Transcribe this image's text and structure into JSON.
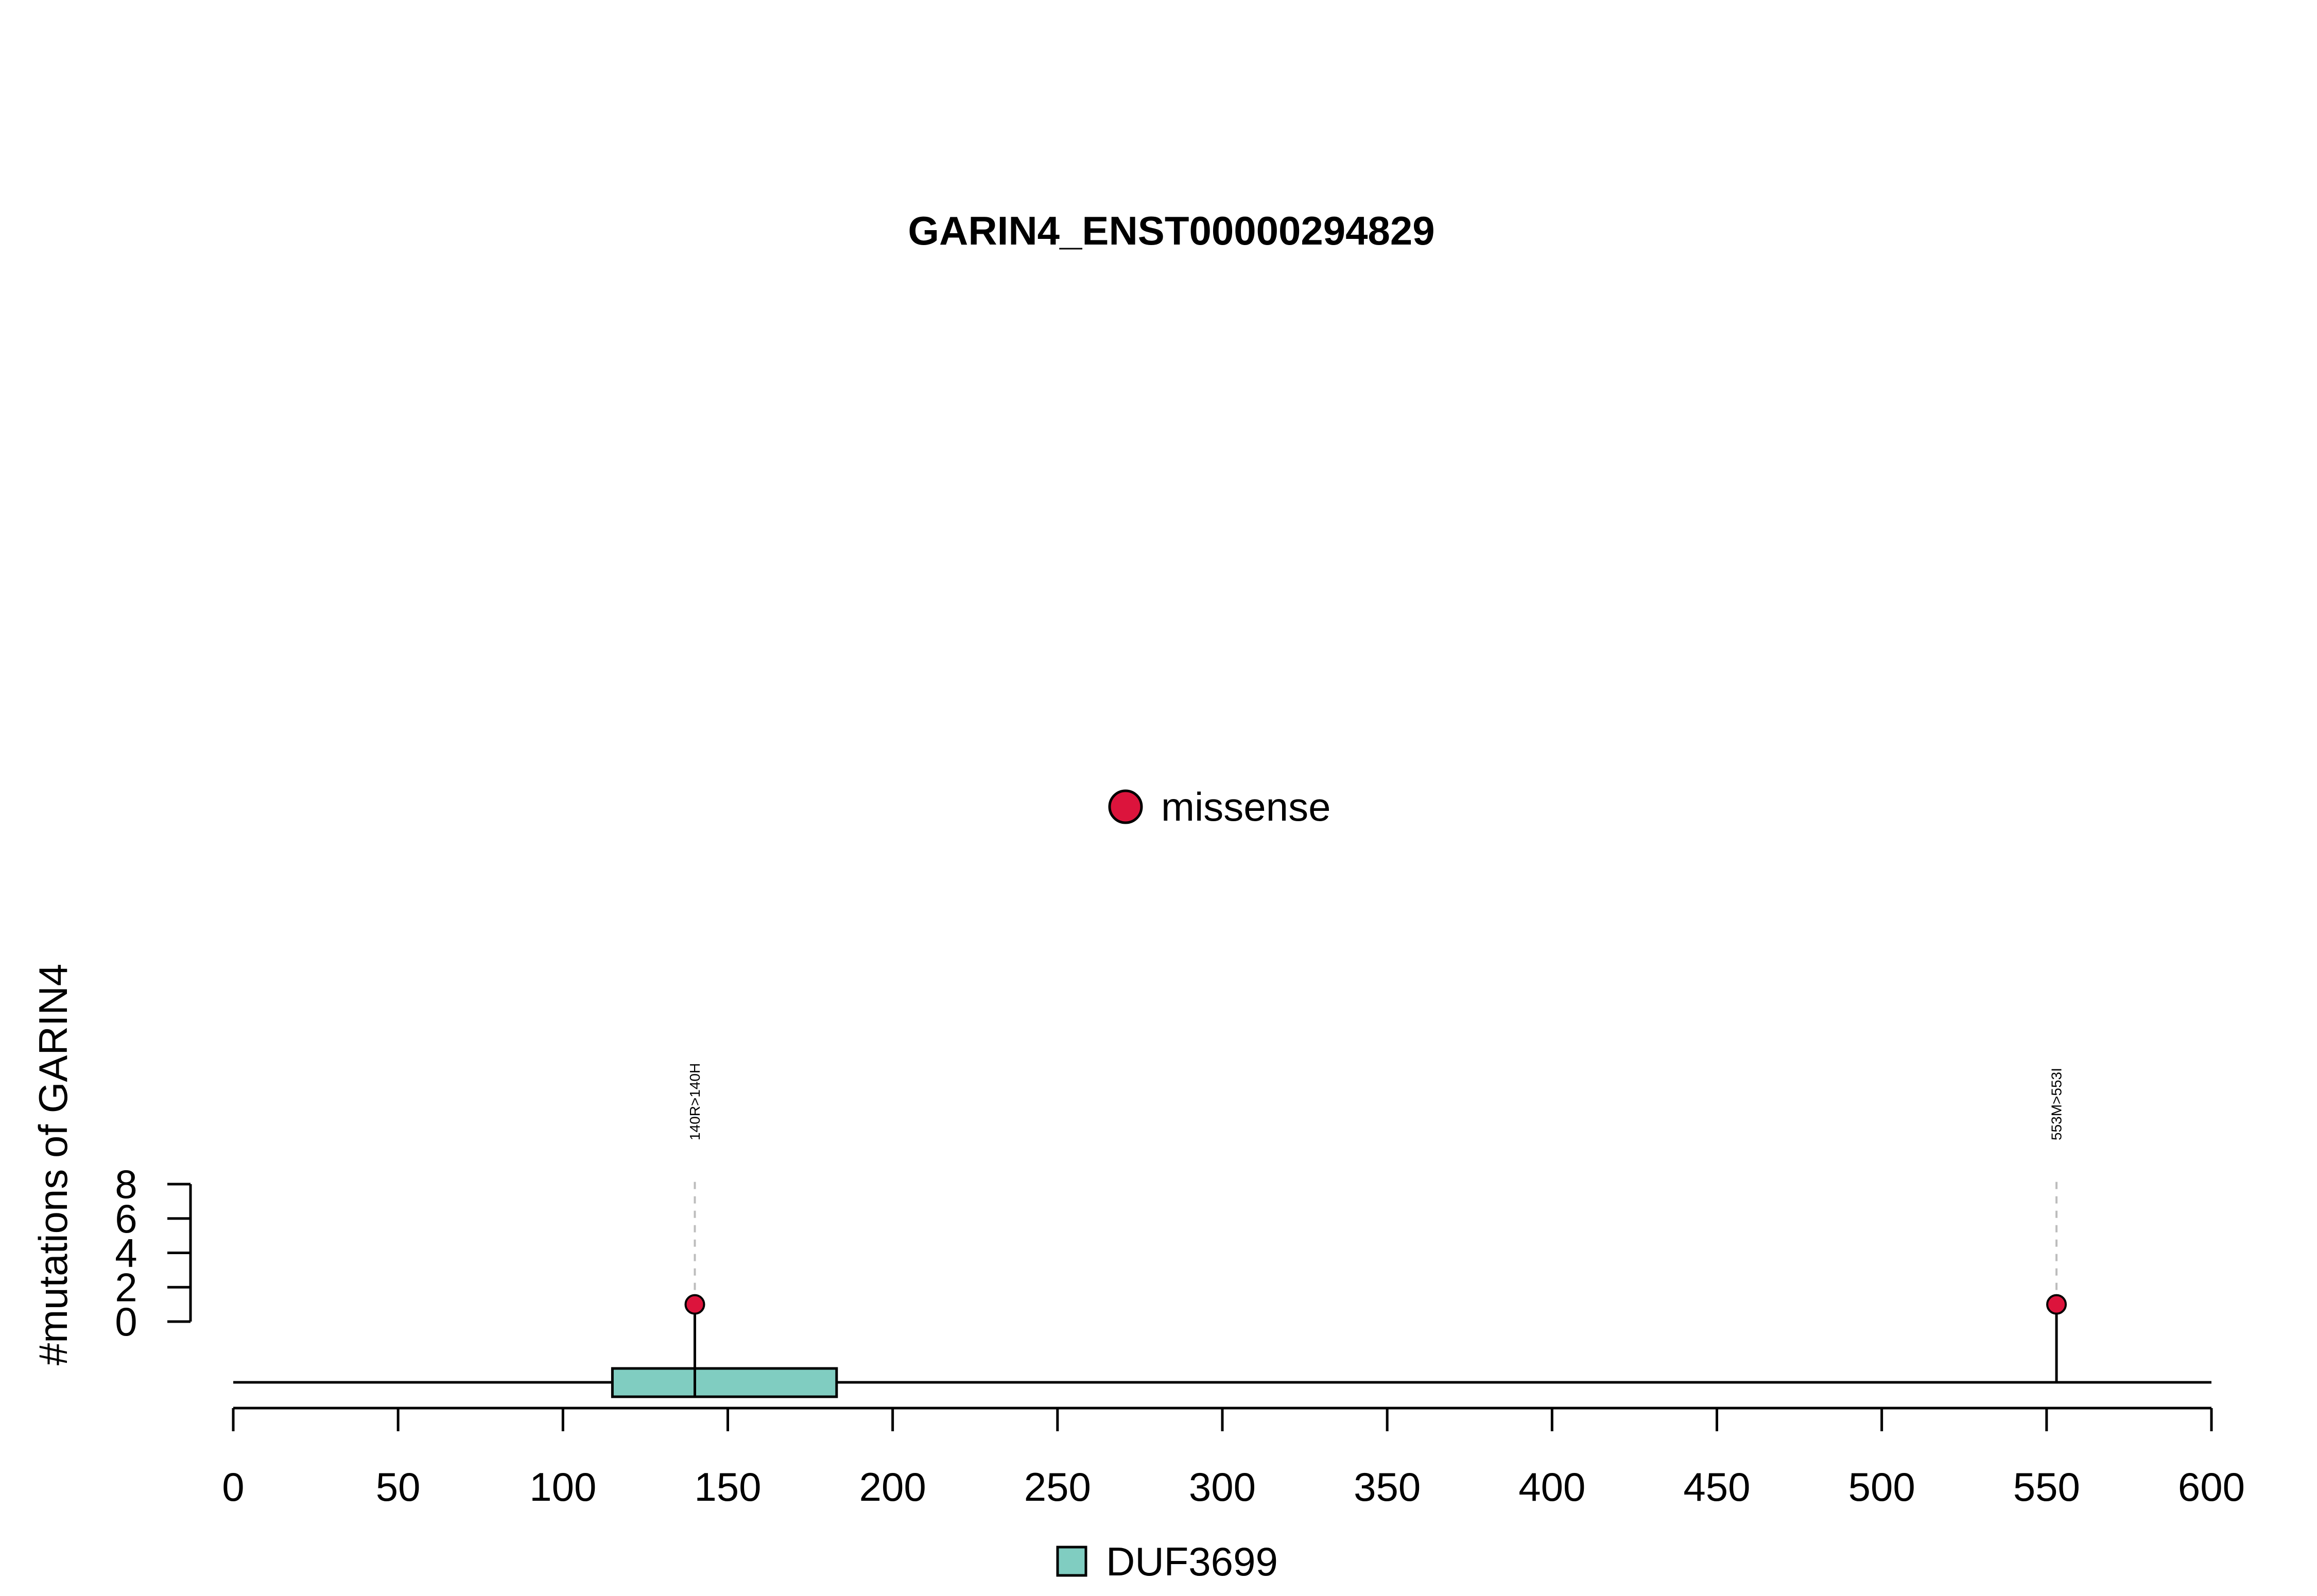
{
  "chart_data": {
    "type": "lollipop",
    "title": "GARIN4_ENST00000294829",
    "ylabel": "#mutations of GARIN4",
    "xlim": [
      0,
      600
    ],
    "x_ticks": [
      0,
      50,
      100,
      150,
      200,
      250,
      300,
      350,
      400,
      450,
      500,
      550,
      600
    ],
    "y_ticks": [
      0,
      2,
      4,
      6,
      8
    ],
    "ylim": [
      0,
      8
    ],
    "protein_length": 600,
    "domains": [
      {
        "name": "DUF3699",
        "start": 115,
        "end": 183,
        "color": "#80cdc1"
      }
    ],
    "mutations": [
      {
        "position": 140,
        "label": "140R>140H",
        "count": 1,
        "type": "missense",
        "color": "#dc143c"
      },
      {
        "position": 553,
        "label": "553M>553I",
        "count": 1,
        "type": "missense",
        "color": "#dc143c"
      }
    ],
    "legend_top": [
      {
        "label": "missense",
        "color": "#dc143c",
        "shape": "circle"
      }
    ],
    "legend_bottom": [
      {
        "label": "DUF3699",
        "color": "#80cdc1",
        "shape": "square"
      }
    ]
  }
}
